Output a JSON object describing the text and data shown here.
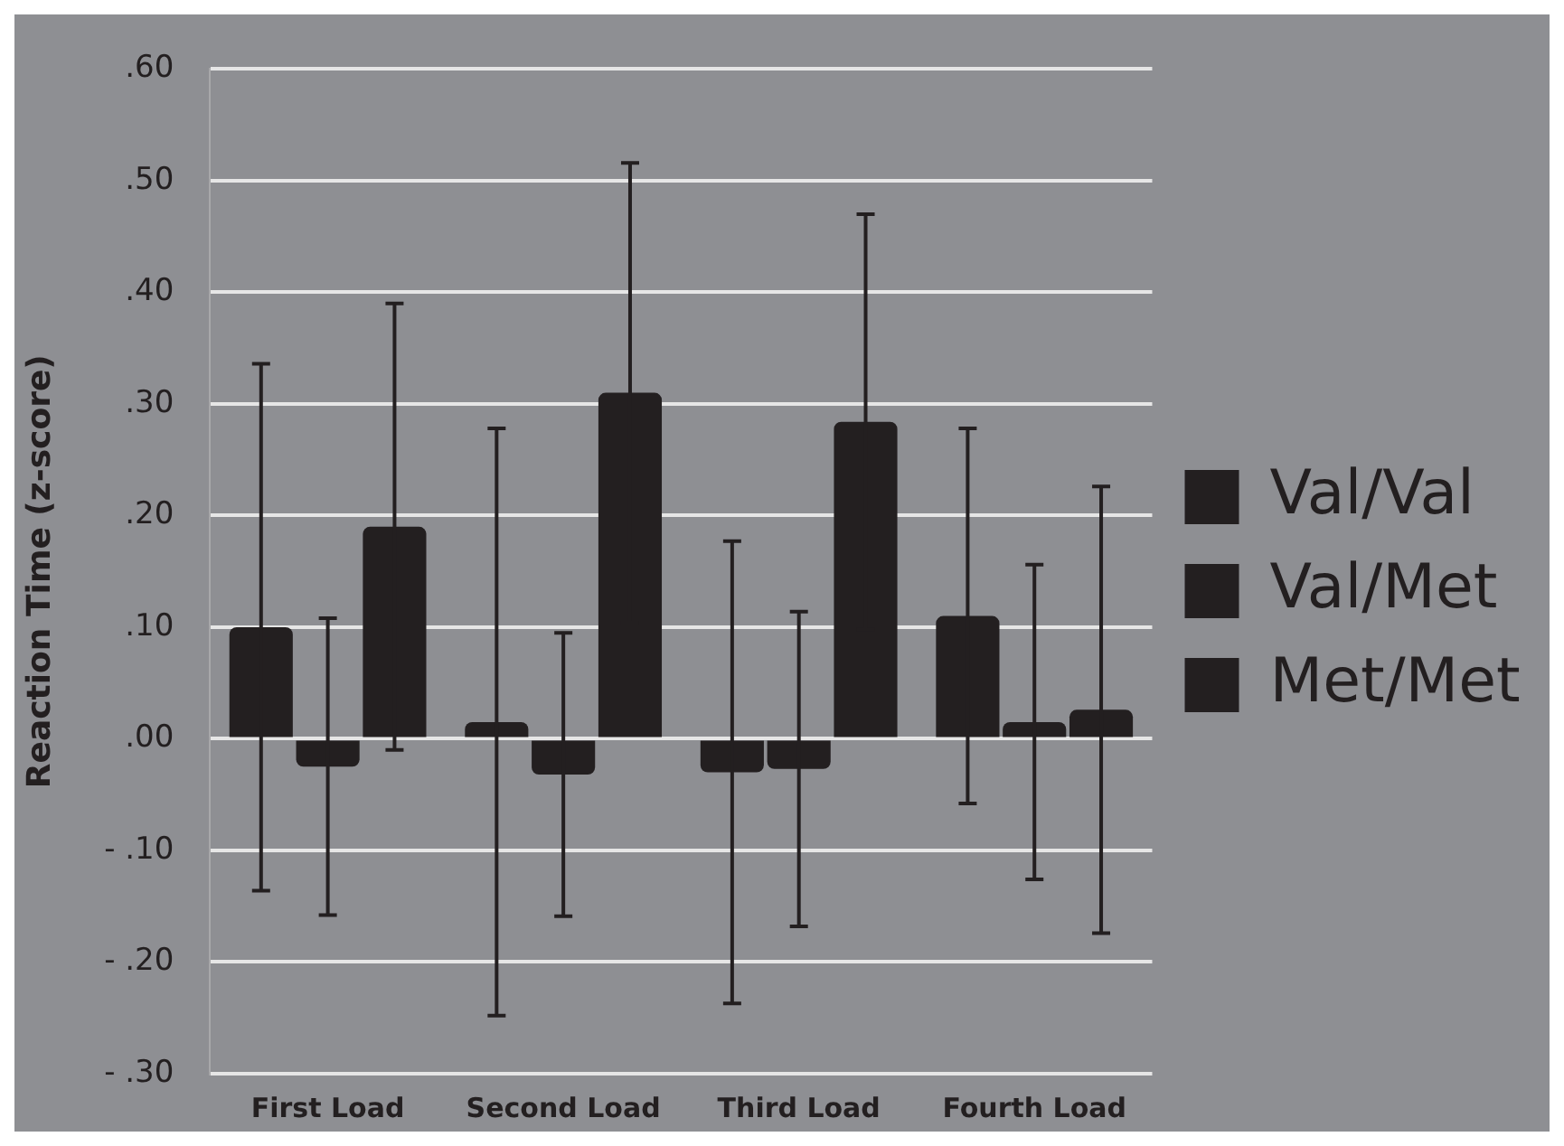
{
  "chart_data": {
    "type": "bar",
    "ylabel": "Reaction Time (z-score)",
    "categories": [
      "First Load",
      "Second Load",
      "Third Load",
      "Fourth Load"
    ],
    "series": [
      {
        "name": "Val/Val",
        "color": "#231f20",
        "values": [
          0.1,
          0.015,
          -0.03,
          0.11
        ],
        "errors": [
          0.236,
          0.263,
          0.207,
          0.168
        ]
      },
      {
        "name": "Val/Met",
        "color": "#231f20",
        "values": [
          -0.025,
          -0.032,
          -0.027,
          0.015
        ],
        "errors": [
          0.133,
          0.127,
          0.141,
          0.141
        ]
      },
      {
        "name": "Met/Met",
        "color": "#231f20",
        "values": [
          0.19,
          0.31,
          0.284,
          0.026
        ],
        "errors": [
          0.2,
          0.206,
          0.186,
          0.2
        ]
      }
    ],
    "ylim": [
      -0.3,
      0.6
    ],
    "yticks": [
      {
        "value": -0.3,
        "label": "- .30"
      },
      {
        "value": -0.2,
        "label": "- .20"
      },
      {
        "value": -0.1,
        "label": "- .10"
      },
      {
        "value": 0,
        "label": ".00"
      },
      {
        "value": 0.1,
        "label": ".10"
      },
      {
        "value": 0.2,
        "label": ".20"
      },
      {
        "value": 0.3,
        "label": ".30"
      },
      {
        "value": 0.4,
        "label": ".40"
      },
      {
        "value": 0.5,
        "label": ".50"
      },
      {
        "value": 0.6,
        "label": ".60"
      }
    ],
    "grid": "y",
    "legend": "right"
  }
}
